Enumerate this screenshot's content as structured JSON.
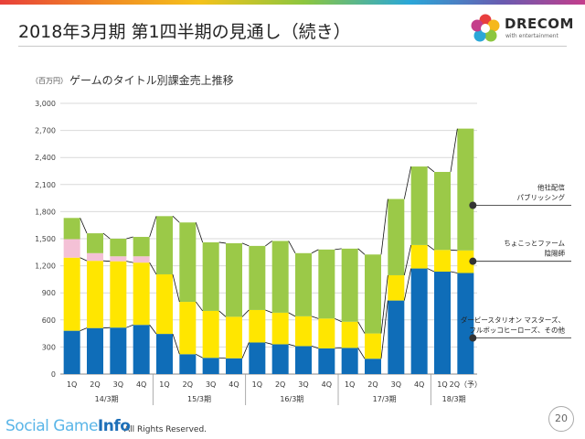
{
  "slide": {
    "title": "2018年3月期 第1四半期の見通し（続き）",
    "page_number": "20",
    "copyright": "All Rights Reserved.",
    "logo_text": "DRECOM",
    "logo_tagline": "with entertainment",
    "watermark_main": "Social Game",
    "watermark_bold": "Info"
  },
  "colors": {
    "derby": "#0f6db8",
    "chokotto": "#ffe600",
    "publishing": "#9bc948",
    "pink": "#f4c1d6"
  },
  "chart_data": {
    "type": "bar",
    "stacked": true,
    "title": "ゲームのタイトル別課金売上推移",
    "unit_label": "（百万円）",
    "ylim": [
      0,
      3000
    ],
    "yticks": [
      0,
      300,
      600,
      900,
      1200,
      1500,
      1800,
      2100,
      2400,
      2700,
      3000
    ],
    "ytick_labels": [
      "0",
      "300",
      "600",
      "900",
      "1,200",
      "1,500",
      "1,800",
      "2,100",
      "2,400",
      "2,700",
      "3,000"
    ],
    "categories": [
      "1Q",
      "2Q",
      "3Q",
      "4Q",
      "1Q",
      "2Q",
      "3Q",
      "4Q",
      "1Q",
      "2Q",
      "3Q",
      "4Q",
      "1Q",
      "2Q",
      "3Q",
      "4Q",
      "1Q",
      "2Q（予）"
    ],
    "groups": [
      {
        "label": "14/3期",
        "start": 0,
        "end": 3
      },
      {
        "label": "15/3期",
        "start": 4,
        "end": 7
      },
      {
        "label": "16/3期",
        "start": 8,
        "end": 11
      },
      {
        "label": "17/3期",
        "start": 12,
        "end": 15
      },
      {
        "label": "18/3期",
        "start": 16,
        "end": 17
      }
    ],
    "series": [
      {
        "name": "ダービースタリオン マスターズ、フルボッコヒーローズ、その他",
        "color_key": "derby",
        "values": [
          480,
          510,
          515,
          545,
          445,
          220,
          180,
          175,
          350,
          330,
          310,
          285,
          290,
          170,
          815,
          1170,
          1135,
          1120
        ]
      },
      {
        "name": "ちょこっとファーム 陰陽師",
        "color_key": "chokotto",
        "values": [
          810,
          745,
          735,
          690,
          660,
          580,
          520,
          460,
          360,
          350,
          330,
          330,
          290,
          280,
          280,
          260,
          240,
          250
        ]
      },
      {
        "name": "",
        "color_key": "pink",
        "values": [
          205,
          85,
          55,
          70,
          0,
          0,
          0,
          0,
          0,
          0,
          0,
          0,
          0,
          0,
          0,
          0,
          0,
          0
        ]
      },
      {
        "name": "他社配信 パブリッシング",
        "color_key": "publishing",
        "values": [
          235,
          220,
          195,
          215,
          645,
          880,
          760,
          815,
          710,
          795,
          700,
          765,
          810,
          875,
          845,
          870,
          865,
          1350
        ]
      }
    ],
    "legend": [
      {
        "line1": "他社配信",
        "line2": "パブリッシング",
        "series_index": 3,
        "y_value": 1870
      },
      {
        "line1": "ちょこっとファーム",
        "line2": "陰陽師",
        "series_index": 1,
        "y_value": 1250
      },
      {
        "line1": "ダービースタリオン マスターズ、",
        "line2": "フルボッコヒーローズ、その他",
        "series_index": 0,
        "y_value": 400
      }
    ],
    "legend_position": "right"
  }
}
